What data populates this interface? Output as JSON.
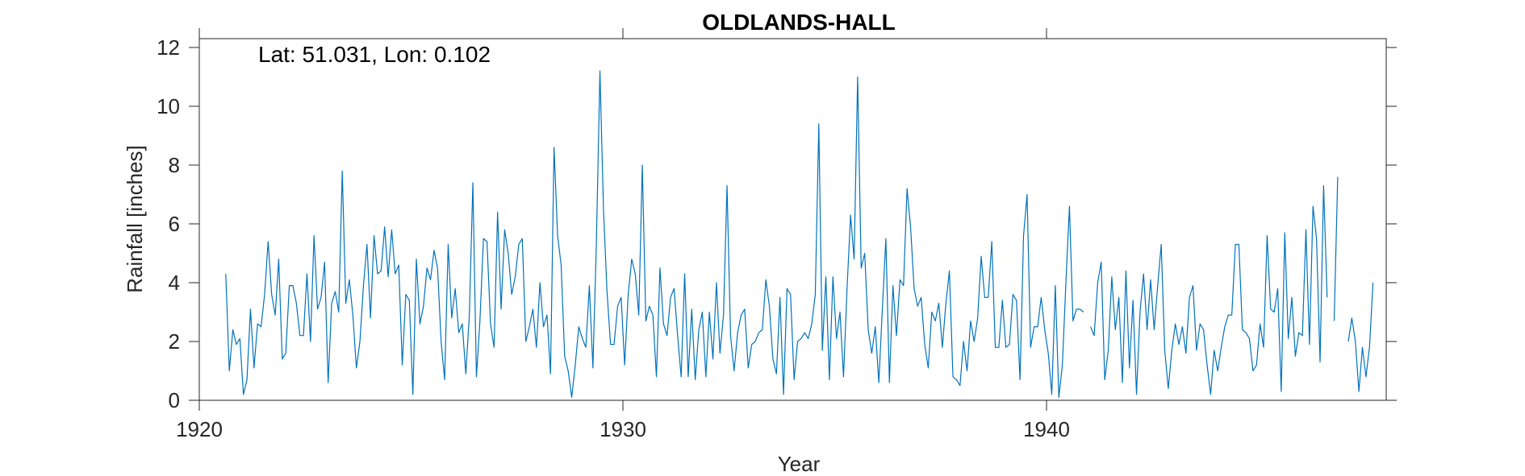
{
  "chart_data": {
    "type": "line",
    "title": "OLDLANDS-HALL",
    "xlabel": "Year",
    "ylabel": "Rainfall [inches]",
    "annotation": "Lat: 51.031, Lon: 0.102",
    "xlim": [
      1920,
      1928
    ],
    "ylim": [
      0,
      12.3
    ],
    "xticks": [
      1920,
      1930,
      1940
    ],
    "yticks": [
      0,
      2,
      4,
      6,
      8,
      10,
      12
    ],
    "grid": false,
    "series": [
      {
        "x_start": 1920.625,
        "x_step": 0.08333,
        "values": [
          4.3,
          1.0,
          2.4,
          1.9,
          2.1,
          0.2,
          0.7,
          3.1,
          1.1,
          2.6,
          2.5,
          3.6,
          5.4,
          3.6,
          2.9,
          4.8,
          1.4,
          1.6,
          3.9,
          3.9,
          3.3,
          2.2,
          2.2,
          4.3,
          2.0,
          5.6,
          3.1,
          3.5,
          4.7,
          0.6,
          3.3,
          3.7,
          3.0,
          7.8,
          3.3,
          4.1,
          2.9,
          1.1,
          2.0,
          3.9,
          5.3,
          2.8,
          5.6,
          4.3,
          4.4,
          5.9,
          4.2,
          5.8,
          4.3,
          4.6,
          1.2,
          3.6,
          3.4,
          0.2,
          4.8,
          2.6,
          3.2,
          4.5,
          4.1,
          5.1,
          4.5,
          2.0,
          0.7,
          5.3,
          2.8,
          3.8,
          2.3,
          2.6,
          0.9,
          2.9,
          7.4,
          0.8,
          2.7,
          5.5,
          5.4,
          2.6,
          1.8,
          6.4,
          3.1,
          5.8,
          5.0,
          3.6,
          4.2,
          5.3,
          5.5,
          2.0,
          2.5,
          3.1,
          1.8,
          4.0,
          2.5,
          2.9,
          0.9,
          8.6,
          5.6,
          4.6,
          1.5,
          1.0,
          0.1,
          1.2,
          2.5,
          2.1,
          1.8,
          3.9,
          1.1,
          5.4,
          11.2,
          6.5,
          3.7,
          1.9,
          1.9,
          3.2,
          3.5,
          1.2,
          3.6,
          4.8,
          4.3,
          2.9,
          8.0,
          2.7,
          3.2,
          2.9,
          0.8,
          4.5,
          2.6,
          2.2,
          3.5,
          3.8,
          2.2,
          0.8,
          4.3,
          0.8,
          3.1,
          0.7,
          2.4,
          3.0,
          0.8,
          3.0,
          1.4,
          4.0,
          1.6,
          2.9,
          7.3,
          2.2,
          1.0,
          2.3,
          2.9,
          3.1,
          1.1,
          1.9,
          2.0,
          2.3,
          2.4,
          4.1,
          3.2,
          1.4,
          0.9,
          3.5,
          0.2,
          3.8,
          3.6,
          0.7,
          2.0,
          2.1,
          2.3,
          2.1,
          2.6,
          3.6,
          9.4,
          1.7,
          4.2,
          0.7,
          4.2,
          2.1,
          3.0,
          0.8,
          3.8,
          6.3,
          4.8,
          11.0,
          4.5,
          5.0,
          2.4,
          1.6,
          2.5,
          0.6,
          3.1,
          5.5,
          0.6,
          3.9,
          2.2,
          4.1,
          3.9,
          7.2,
          5.9,
          3.8,
          3.2,
          3.5,
          1.9,
          1.1,
          3.0,
          2.7,
          3.3,
          1.8,
          3.3,
          4.4,
          0.8,
          0.7,
          0.5,
          2.0,
          1.0,
          2.7,
          2.0,
          2.8,
          4.9,
          3.5,
          3.5,
          5.4,
          1.8,
          1.8,
          3.4,
          1.8,
          1.9,
          3.6,
          3.4,
          0.7,
          5.6,
          7.0,
          1.8,
          2.5,
          2.5,
          3.5,
          2.4,
          1.6,
          0.2,
          3.9,
          0.1,
          1.2,
          4.0,
          6.6,
          2.7,
          3.1,
          3.1,
          3.0,
          null,
          2.5,
          2.2,
          4.0,
          4.7,
          0.7,
          1.7,
          4.2,
          2.4,
          3.5,
          0.6,
          4.4,
          1.1,
          3.4,
          0.2,
          3.0,
          4.3,
          2.4,
          4.1,
          2.4,
          3.9,
          5.3,
          1.7,
          0.4,
          1.7,
          2.6,
          1.9,
          2.5,
          1.6,
          3.5,
          3.9,
          1.7,
          2.6,
          2.4,
          1.2,
          0.2,
          1.7,
          1.0,
          1.8,
          2.5,
          2.9,
          2.9,
          5.3,
          5.3,
          2.4,
          2.3,
          2.1,
          1.0,
          1.2,
          2.6,
          1.8,
          5.6,
          3.1,
          3.0,
          3.8,
          0.3,
          5.7,
          2.1,
          3.5,
          1.5,
          2.3,
          2.2,
          5.8,
          1.9,
          6.6,
          5.5,
          1.3,
          7.3,
          3.5,
          null,
          2.7,
          7.6,
          null,
          null,
          2.0,
          2.8,
          2.0,
          0.3,
          1.8,
          0.8,
          1.8,
          4.0
        ]
      }
    ]
  },
  "colors": {
    "line": "#0072BD",
    "axis": "#262626"
  }
}
